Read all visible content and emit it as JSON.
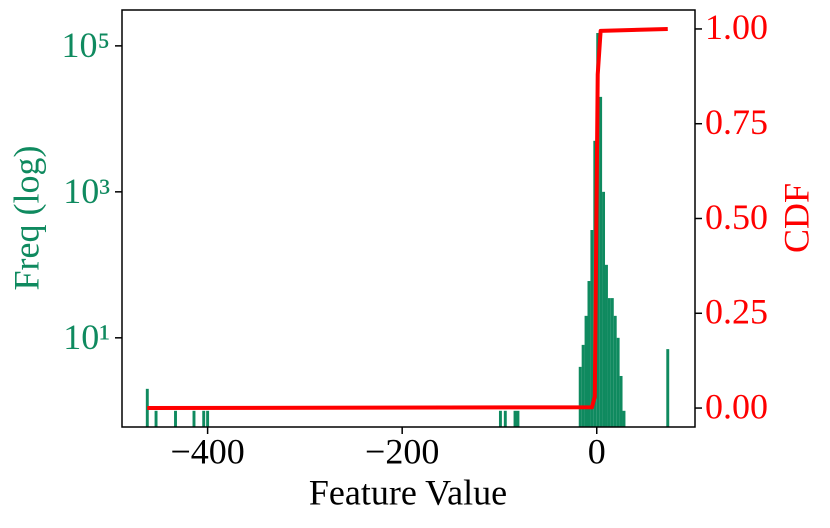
{
  "chart_data": {
    "type": "histogram",
    "xlabel": "Feature Value",
    "ylabel": "Freq (log)",
    "y2label": "CDF",
    "bins": [
      -463.5,
      -460.5,
      -454.5,
      -451.5,
      -434.5,
      -431.5,
      -415.5,
      -412.5,
      -405.5,
      -402.5,
      -401.5,
      -398.5,
      -100.5,
      -97.5,
      -95.5,
      -92.5,
      -85.5,
      -82.5,
      -79.5,
      -18.5,
      -15.5,
      -12.5,
      -9.5,
      -6.5,
      -3.5,
      -0.5,
      2.5,
      5.5,
      8.5,
      11.5,
      14.5,
      17.5,
      20.5,
      23.5,
      26.5,
      29.5,
      71.5,
      74.5
    ],
    "counts": [
      2,
      0,
      1,
      0,
      1,
      0,
      1,
      0,
      1,
      0,
      1,
      0,
      1,
      0,
      1,
      0,
      1,
      1,
      0,
      4,
      8,
      20,
      60,
      300,
      5000,
      150000,
      20000,
      1000,
      100,
      35,
      35,
      20,
      10,
      3,
      1,
      0,
      7
    ],
    "color": "#0f8a5f",
    "ylog": true,
    "ylim": [
      0.6,
      310000
    ],
    "yticks": [
      {
        "value": 10,
        "label": "10¹"
      },
      {
        "value": 1000,
        "label": "10³"
      },
      {
        "value": 100000,
        "label": "10⁵"
      }
    ],
    "xlim": [
      -488,
      101
    ],
    "xticks": [
      {
        "value": -400,
        "label": "−400"
      },
      {
        "value": -200,
        "label": "−200"
      },
      0
    ],
    "y2lim": [
      -0.05,
      1.05
    ],
    "y2ticks": [
      {
        "value": 0,
        "label": "0.00"
      },
      0.25,
      {
        "value": 0.5,
        "label": "0.50"
      },
      0.75,
      {
        "value": 1,
        "label": "1.00"
      }
    ],
    "y2color": "#ff0000",
    "line": {
      "type": "line",
      "axis": "y2",
      "color": "#ff0000",
      "x": [
        -462,
        -5,
        -2,
        1,
        4,
        73
      ],
      "values": [
        0,
        0.002,
        0.03,
        0.88,
        0.995,
        1.0
      ]
    }
  }
}
